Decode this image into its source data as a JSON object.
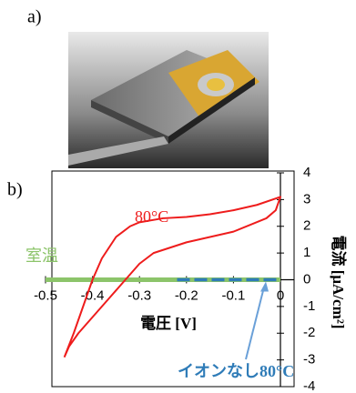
{
  "panel_a_label": "a)",
  "chart_data": {
    "type": "line",
    "panel_label": "b)",
    "xlabel": "電圧 [V]",
    "ylabel": "電流 [μA/cm²]",
    "xlim": [
      -0.5,
      0
    ],
    "xticks": [
      -0.5,
      -0.4,
      -0.3,
      -0.2,
      -0.1,
      0
    ],
    "ylim": [
      -4,
      4
    ],
    "yticks": [
      -4,
      -3,
      -2,
      -1,
      0,
      1,
      2,
      3,
      4
    ],
    "series": [
      {
        "name": "室温",
        "color": "#8cc46a",
        "x": [
          -0.5,
          0
        ],
        "values": [
          0,
          0
        ]
      },
      {
        "name": "イオンなし80°C",
        "color": "#2f7cb8",
        "x": [
          -0.22,
          0
        ],
        "values": [
          0,
          0
        ]
      },
      {
        "name": "80°C",
        "color": "#ee1c1c",
        "x": [
          -0.46,
          -0.44,
          -0.42,
          -0.4,
          -0.38,
          -0.35,
          -0.32,
          -0.3,
          -0.25,
          -0.2,
          -0.15,
          -0.1,
          -0.05,
          0,
          -0.01,
          -0.03,
          -0.1,
          -0.2,
          -0.27,
          -0.3,
          -0.33,
          -0.36,
          -0.4,
          -0.43,
          -0.45,
          -0.46
        ],
        "values": [
          -2.9,
          -2.0,
          -1.0,
          0,
          0.8,
          1.6,
          2.0,
          2.15,
          2.3,
          2.35,
          2.45,
          2.6,
          2.8,
          3.1,
          2.6,
          2.3,
          1.8,
          1.4,
          1.0,
          0.6,
          0,
          -0.6,
          -1.4,
          -2.0,
          -2.5,
          -2.9
        ]
      }
    ]
  }
}
